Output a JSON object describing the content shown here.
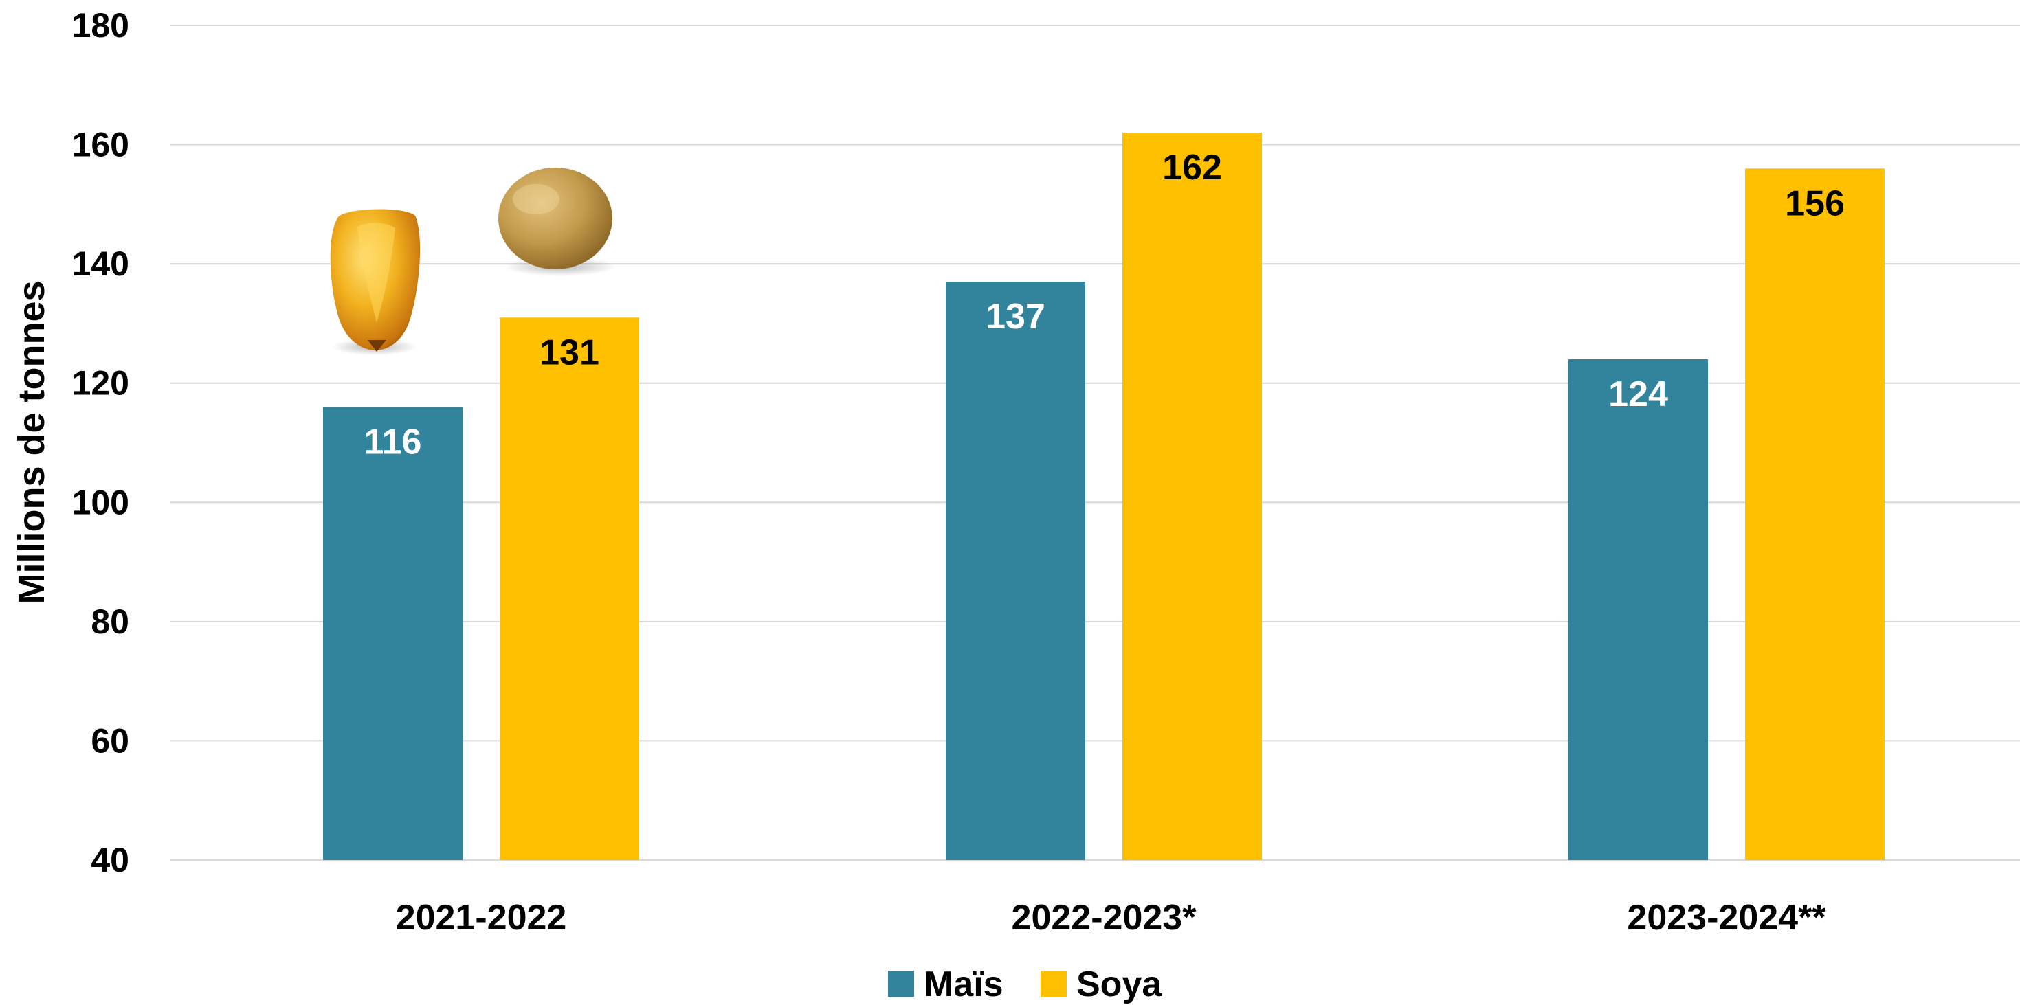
{
  "chart_data": {
    "type": "bar",
    "categories": [
      "2021-2022",
      "2022-2023*",
      "2023-2024**"
    ],
    "series": [
      {
        "name": "Maïs",
        "color": "#31849B",
        "label_color": "#FFFFFF",
        "values": [
          116,
          137,
          124
        ],
        "labels": [
          "116",
          "137",
          "124"
        ]
      },
      {
        "name": "Soya",
        "color": "#FFC000",
        "label_color": "#000000",
        "values": [
          131,
          162,
          156
        ],
        "labels": [
          "131",
          "162",
          "156"
        ]
      }
    ],
    "title": "",
    "xlabel": "",
    "ylabel": "Millions de tonnes",
    "ylim": [
      40,
      180
    ],
    "yticks": [
      "40",
      "60",
      "80",
      "100",
      "120",
      "140",
      "160",
      "180"
    ],
    "grid": true,
    "legend_position": "bottom-center",
    "decorations": [
      "corn-kernel-image",
      "soybean-image"
    ]
  }
}
